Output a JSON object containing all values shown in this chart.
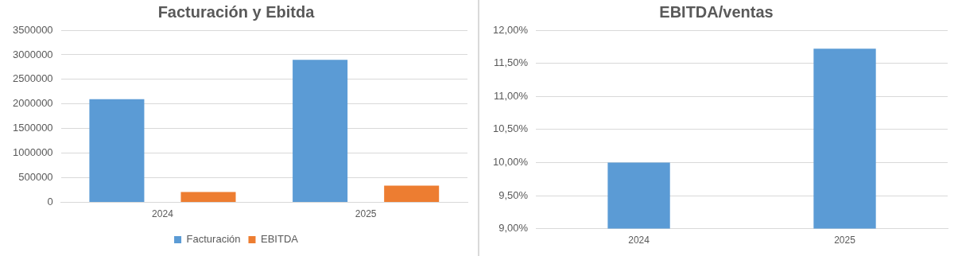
{
  "chart_data": [
    {
      "type": "bar",
      "title": "Facturación y Ebitda",
      "categories": [
        "2024",
        "2025"
      ],
      "series": [
        {
          "name": "Facturación",
          "color": "#5b9bd5",
          "values": [
            2100000,
            2900000
          ]
        },
        {
          "name": "EBITDA",
          "color": "#ed7d31",
          "values": [
            210000,
            340000
          ]
        }
      ],
      "ylim": [
        0,
        3500000
      ],
      "yticks": [
        0,
        500000,
        1000000,
        1500000,
        2000000,
        2500000,
        3000000,
        3500000
      ],
      "grid": "y",
      "legend": "bottom"
    },
    {
      "type": "bar",
      "title": "EBITDA/ventas",
      "categories": [
        "2024",
        "2025"
      ],
      "values": [
        10.0,
        11.72
      ],
      "color": "#5b9bd5",
      "ylim": [
        9,
        12
      ],
      "yticks": [
        {
          "value": 9,
          "label": "9,00%"
        },
        {
          "value": 9.5,
          "label": "9,50%"
        },
        {
          "value": 10,
          "label": "10,00%"
        },
        {
          "value": 10.5,
          "label": "10,50%"
        },
        {
          "value": 11,
          "label": "11,00%"
        },
        {
          "value": 11.5,
          "label": "11,50%"
        },
        {
          "value": 12,
          "label": "12,00%"
        }
      ],
      "grid": "y"
    }
  ]
}
